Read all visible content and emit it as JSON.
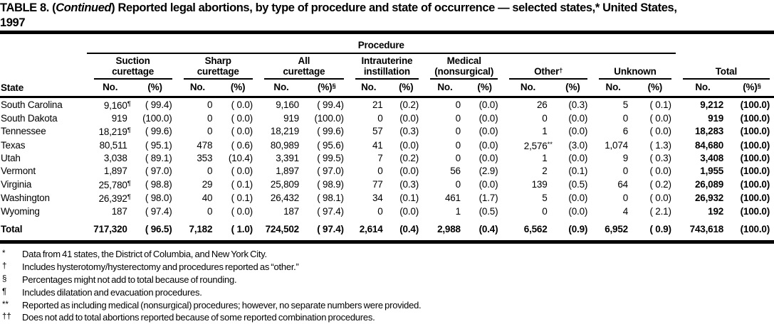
{
  "page": {
    "background": "#ffffff",
    "text_color": "#000000"
  },
  "title": {
    "prefix": "TABLE 8. (",
    "continued": "Continued",
    "suffix": ") Reported legal abortions, by type of procedure and state of occurrence — selected states,* United States,",
    "line2": "1997"
  },
  "header": {
    "state_label": "State",
    "procedure_label": "Procedure",
    "no_label": "No.",
    "pct_label": "(%)",
    "groups": [
      {
        "line1": "Suction",
        "line2": "curettage"
      },
      {
        "line1": "Sharp",
        "line2": "curettage"
      },
      {
        "line1": "All",
        "line2": "curettage",
        "pct_sup": "§"
      },
      {
        "line1": "Intrauterine",
        "line2": "instillation"
      },
      {
        "line1": "Medical",
        "line2": "(nonsurgical)"
      },
      {
        "line1": "Other",
        "line2": "",
        "label_sup": "†"
      },
      {
        "line1": "Unknown",
        "line2": ""
      },
      {
        "line1": "Total",
        "line2": "",
        "pct_sup": "§"
      }
    ]
  },
  "table": {
    "rows": [
      {
        "state": "South Carolina",
        "cells": [
          {
            "no": "9,160",
            "sup": "¶",
            "pct": "( 99.4)"
          },
          {
            "no": "0",
            "pct": "( 0.0)"
          },
          {
            "no": "9,160",
            "pct": "( 99.4)"
          },
          {
            "no": "21",
            "pct": "(0.2)"
          },
          {
            "no": "0",
            "pct": "(0.0)"
          },
          {
            "no": "26",
            "pct": "(0.3)"
          },
          {
            "no": "5",
            "pct": "( 0.1)"
          },
          {
            "no": "9,212",
            "pct": "(100.0)"
          }
        ]
      },
      {
        "state": "South Dakota",
        "cells": [
          {
            "no": "919",
            "pct": "(100.0)"
          },
          {
            "no": "0",
            "pct": "( 0.0)"
          },
          {
            "no": "919",
            "pct": "(100.0)"
          },
          {
            "no": "0",
            "pct": "(0.0)"
          },
          {
            "no": "0",
            "pct": "(0.0)"
          },
          {
            "no": "0",
            "pct": "(0.0)"
          },
          {
            "no": "0",
            "pct": "( 0.0)"
          },
          {
            "no": "919",
            "pct": "(100.0)"
          }
        ]
      },
      {
        "state": "Tennessee",
        "cells": [
          {
            "no": "18,219",
            "sup": "¶",
            "pct": "( 99.6)"
          },
          {
            "no": "0",
            "pct": "( 0.0)"
          },
          {
            "no": "18,219",
            "pct": "( 99.6)"
          },
          {
            "no": "57",
            "pct": "(0.3)"
          },
          {
            "no": "0",
            "pct": "(0.0)"
          },
          {
            "no": "1",
            "pct": "(0.0)"
          },
          {
            "no": "6",
            "pct": "( 0.0)"
          },
          {
            "no": "18,283",
            "pct": "(100.0)"
          }
        ]
      },
      {
        "state": "Texas",
        "cells": [
          {
            "no": "80,511",
            "pct": "( 95.1)"
          },
          {
            "no": "478",
            "pct": "( 0.6)"
          },
          {
            "no": "80,989",
            "pct": "( 95.6)"
          },
          {
            "no": "41",
            "pct": "(0.0)"
          },
          {
            "no": "0",
            "pct": "(0.0)"
          },
          {
            "no": "2,576",
            "sup": "**",
            "pct": "(3.0)"
          },
          {
            "no": "1,074",
            "pct": "( 1.3)"
          },
          {
            "no": "84,680",
            "pct": "(100.0)"
          }
        ]
      },
      {
        "state": "Utah",
        "cells": [
          {
            "no": "3,038",
            "pct": "( 89.1)"
          },
          {
            "no": "353",
            "pct": "(10.4)"
          },
          {
            "no": "3,391",
            "pct": "( 99.5)"
          },
          {
            "no": "7",
            "pct": "(0.2)"
          },
          {
            "no": "0",
            "pct": "(0.0)"
          },
          {
            "no": "1",
            "pct": "(0.0)"
          },
          {
            "no": "9",
            "pct": "( 0.3)"
          },
          {
            "no": "3,408",
            "pct": "(100.0)"
          }
        ]
      },
      {
        "state": "Vermont",
        "cells": [
          {
            "no": "1,897",
            "pct": "( 97.0)"
          },
          {
            "no": "0",
            "pct": "( 0.0)"
          },
          {
            "no": "1,897",
            "pct": "( 97.0)"
          },
          {
            "no": "0",
            "pct": "(0.0)"
          },
          {
            "no": "56",
            "pct": "(2.9)"
          },
          {
            "no": "2",
            "pct": "(0.1)"
          },
          {
            "no": "0",
            "pct": "( 0.0)"
          },
          {
            "no": "1,955",
            "pct": "(100.0)"
          }
        ]
      },
      {
        "state": "Virginia",
        "cells": [
          {
            "no": "25,780",
            "sup": "¶",
            "pct": "( 98.8)"
          },
          {
            "no": "29",
            "pct": "( 0.1)"
          },
          {
            "no": "25,809",
            "pct": "( 98.9)"
          },
          {
            "no": "77",
            "pct": "(0.3)"
          },
          {
            "no": "0",
            "pct": "(0.0)"
          },
          {
            "no": "139",
            "pct": "(0.5)"
          },
          {
            "no": "64",
            "pct": "( 0.2)"
          },
          {
            "no": "26,089",
            "pct": "(100.0)"
          }
        ]
      },
      {
        "state": "Washington",
        "cells": [
          {
            "no": "26,392",
            "sup": "¶",
            "pct": "( 98.0)"
          },
          {
            "no": "40",
            "pct": "( 0.1)"
          },
          {
            "no": "26,432",
            "pct": "( 98.1)"
          },
          {
            "no": "34",
            "pct": "(0.1)"
          },
          {
            "no": "461",
            "pct": "(1.7)"
          },
          {
            "no": "5",
            "pct": "(0.0)"
          },
          {
            "no": "0",
            "pct": "( 0.0)"
          },
          {
            "no": "26,932",
            "pct": "(100.0)"
          }
        ]
      },
      {
        "state": "Wyoming",
        "cells": [
          {
            "no": "187",
            "pct": "( 97.4)"
          },
          {
            "no": "0",
            "pct": "( 0.0)"
          },
          {
            "no": "187",
            "pct": "( 97.4)"
          },
          {
            "no": "0",
            "pct": "(0.0)"
          },
          {
            "no": "1",
            "pct": "(0.5)"
          },
          {
            "no": "0",
            "pct": "(0.0)"
          },
          {
            "no": "4",
            "pct": "( 2.1)"
          },
          {
            "no": "192",
            "pct": "(100.0)"
          }
        ]
      },
      {
        "state": "Total",
        "is_total": true,
        "cells": [
          {
            "no": "717,320",
            "pct": "( 96.5)"
          },
          {
            "no": "7,182",
            "pct": "( 1.0)"
          },
          {
            "no": "724,502",
            "pct": "( 97.4)"
          },
          {
            "no": "2,614",
            "pct": "(0.4)"
          },
          {
            "no": "2,988",
            "pct": "(0.4)"
          },
          {
            "no": "6,562",
            "pct": "(0.9)"
          },
          {
            "no": "6,952",
            "pct": "( 0.9)"
          },
          {
            "no": "743,618",
            "pct": "(100.0)"
          }
        ]
      }
    ]
  },
  "footnotes": [
    {
      "marker": "*",
      "text": "Data from 41 states, the District of Columbia, and New York City."
    },
    {
      "marker": "†",
      "text": "Includes hysterotomy/hysterectomy and procedures reported as “other.”"
    },
    {
      "marker": "§",
      "text": "Percentages might not add to total because of rounding."
    },
    {
      "marker": "¶",
      "text": "Includes dilatation and evacuation procedures."
    },
    {
      "marker": "**",
      "text": "Reported as including medical (nonsurgical) procedures; however, no separate numbers were provided."
    },
    {
      "marker": "††",
      "text": "Does not add to total abortions reported because of some reported combination procedures."
    }
  ]
}
